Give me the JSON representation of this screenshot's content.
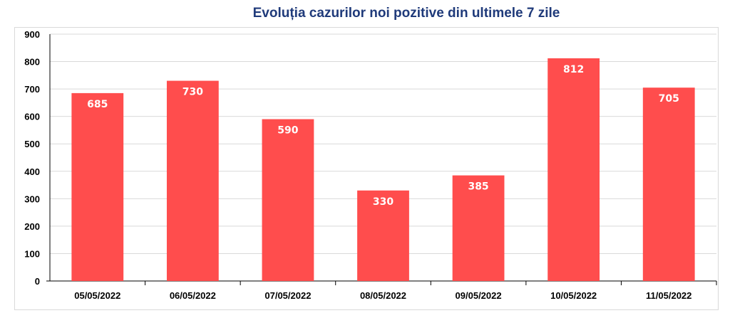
{
  "chart_data": {
    "type": "bar",
    "title": "Evoluția cazurilor noi pozitive din ultimele 7 zile",
    "xlabel": "",
    "ylabel": "",
    "categories": [
      "05/05/2022",
      "06/05/2022",
      "07/05/2022",
      "08/05/2022",
      "09/05/2022",
      "10/05/2022",
      "11/05/2022"
    ],
    "values": [
      685,
      730,
      590,
      330,
      385,
      812,
      705
    ],
    "ylim": [
      0,
      900
    ],
    "yticks": [
      0,
      100,
      200,
      300,
      400,
      500,
      600,
      700,
      800,
      900
    ],
    "grid": true,
    "legend": "none",
    "bar_color": "#ff4d4d",
    "title_color": "#1f3a7a"
  }
}
